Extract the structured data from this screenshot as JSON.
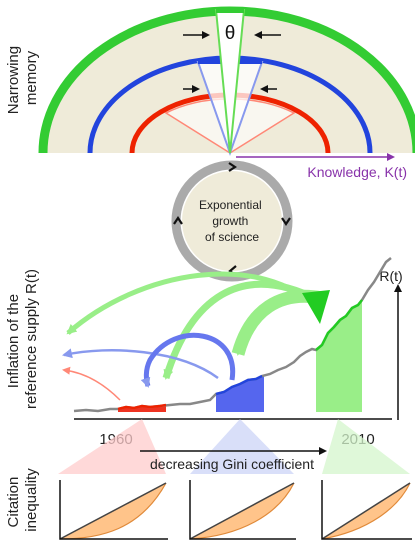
{
  "labels": {
    "theta": "θ",
    "narrowing_memory": [
      "Narrowing",
      "memory"
    ],
    "knowledge": "Knowledge, K(t)",
    "exponential_growth": [
      "Exponential",
      "growth",
      "of science"
    ],
    "inflation": [
      "Inflation of the",
      "reference supply R(t)"
    ],
    "r_of_t": "R(t)",
    "year_start": "1960",
    "year_end": "2010",
    "gini": "decreasing Gini coefficient",
    "citation_inequality": [
      "Citation",
      "inequality"
    ]
  },
  "colors": {
    "green": "#33cc33",
    "light_green": "#99ee88",
    "blue": "#2244dd",
    "light_blue": "#8899ee",
    "red": "#ee2200",
    "light_red": "#ff8877",
    "beige": "#efebd9",
    "gray": "#888888",
    "orange": "#ffc48a",
    "purple": "#8833aa"
  },
  "icons": [
    "cycle-arrow-icon",
    "vertical-arrow-icon",
    "horizontal-arrow-icon"
  ]
}
